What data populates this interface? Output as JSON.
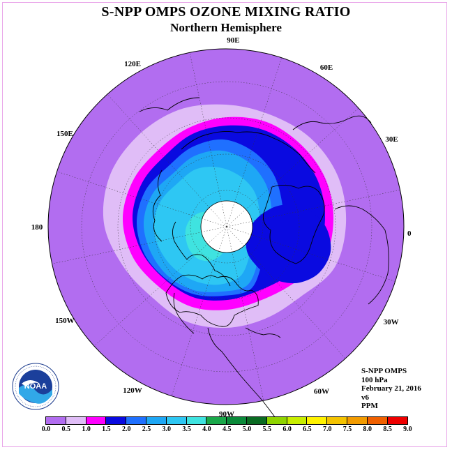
{
  "header": {
    "title": "S-NPP OMPS OZONE MIXING RATIO",
    "subtitle": "Northern Hemisphere"
  },
  "info": {
    "instrument": "S-NPP OMPS",
    "level": "100 hPa",
    "date": "February 21, 2016",
    "version": "v6",
    "units": "PPM"
  },
  "longitude_labels": [
    "90E",
    "60E",
    "30E",
    "0",
    "30W",
    "60W",
    "90W",
    "120W",
    "150W",
    "180",
    "150E",
    "120E"
  ],
  "logo_text": "NOAA",
  "colors": {
    "ocean_outer": "#b26df0",
    "band_0_5": "#e0bdf7",
    "band_1_0": "#ff00ff",
    "band_1_5": "#0a0ae0",
    "band_2_0": "#1f70ff",
    "band_2_5": "#1ea7f5",
    "band_3_0": "#2ec7f3",
    "band_3_5": "#3fe3e0",
    "polar_cap": "#ffffff",
    "frame": "#e9a6e9"
  },
  "chart_data": {
    "type": "heatmap",
    "projection": "north polar stereographic",
    "title": "S-NPP OMPS OZONE MIXING RATIO",
    "subtitle": "Northern Hemisphere",
    "units": "PPM",
    "level": "100 hPa",
    "date": "February 21, 2016",
    "colorbar": {
      "ticks": [
        "0.0",
        "0.5",
        "1.0",
        "1.5",
        "2.0",
        "2.5",
        "3.0",
        "3.5",
        "4.0",
        "4.5",
        "5.0",
        "5.5",
        "6.0",
        "6.5",
        "7.0",
        "7.5",
        "8.0",
        "8.5",
        "9.0"
      ],
      "colors": [
        "#b26df0",
        "#e0bdf7",
        "#ff00ff",
        "#0a0ae0",
        "#1f70ff",
        "#1ea7f5",
        "#2ec7f3",
        "#3fe3e0",
        "#1aa84a",
        "#0b8a3a",
        "#0a6b22",
        "#8fd400",
        "#c8ee00",
        "#fff200",
        "#f4c300",
        "#f29b00",
        "#f06000",
        "#ee0000",
        "#8b5a3c"
      ]
    }
  }
}
